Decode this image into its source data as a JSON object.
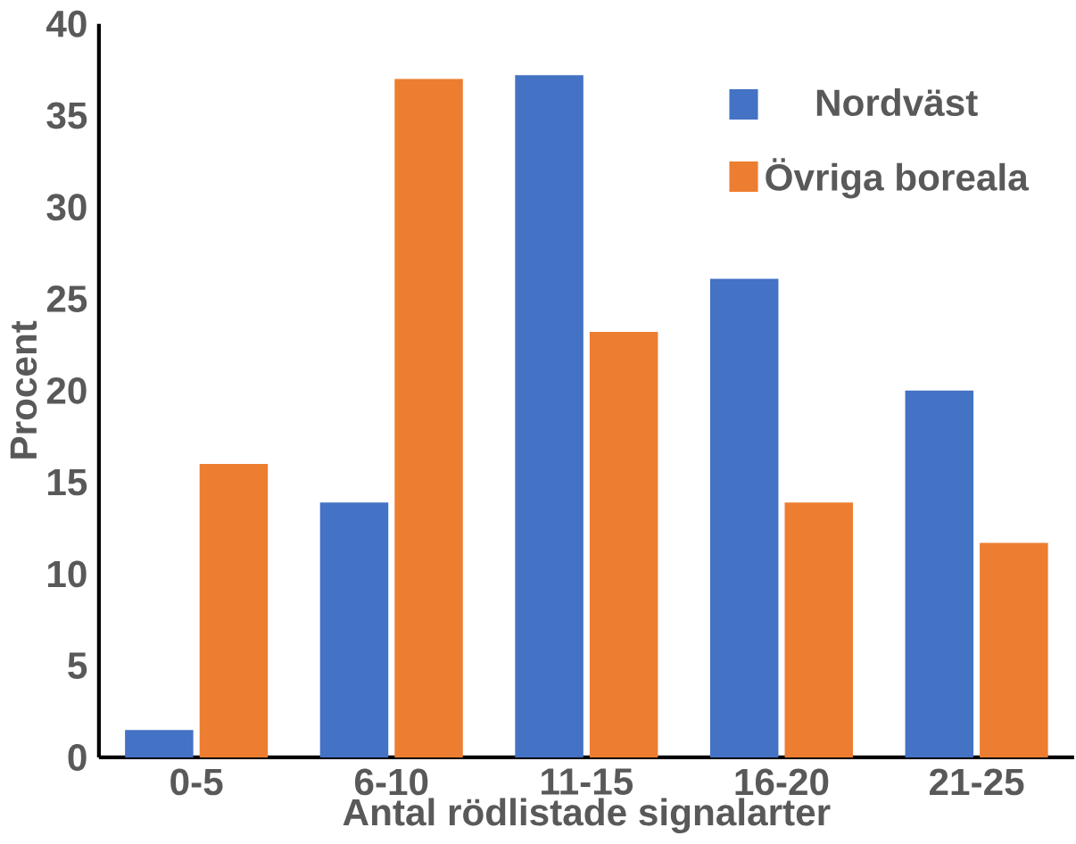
{
  "chart_data": {
    "type": "bar",
    "xlabel": "Antal rödlistade signalarter",
    "ylabel": "Procent",
    "categories": [
      "0-5",
      "6-10",
      "11-15",
      "16-20",
      "21-25"
    ],
    "series": [
      {
        "name": "Nordväst",
        "color": "#4472c4",
        "values": [
          1.5,
          13.9,
          37.2,
          26.1,
          20.0
        ]
      },
      {
        "name": "Övriga boreala",
        "color": "#ed7d31",
        "values": [
          16.0,
          37.0,
          23.2,
          13.9,
          11.7
        ]
      }
    ],
    "ylim": [
      0,
      40
    ],
    "yticks": [
      0,
      5,
      10,
      15,
      20,
      25,
      30,
      35,
      40
    ],
    "grid": false,
    "legend": "top right"
  }
}
